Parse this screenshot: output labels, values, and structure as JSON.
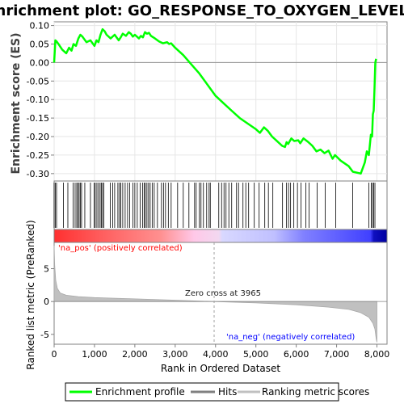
{
  "chart_data": {
    "type": "line",
    "title": "Enrichment plot: GO_RESPONSE_TO_OXYGEN_LEVELS",
    "es_panel": {
      "ylabel": "Enrichment score (ES)",
      "ylim": [
        -0.32,
        0.11
      ],
      "yticks": [
        "0.10",
        "0.05",
        "0.00",
        "-0.05",
        "-0.10",
        "-0.15",
        "-0.20",
        "-0.25",
        "-0.30"
      ],
      "ytick_values": [
        0.1,
        0.05,
        0.0,
        -0.05,
        -0.1,
        -0.15,
        -0.2,
        -0.25,
        -0.3
      ],
      "series": [
        {
          "name": "Enrichment profile",
          "color": "#00ff00",
          "x": [
            0,
            30,
            60,
            120,
            200,
            300,
            370,
            430,
            480,
            540,
            600,
            650,
            700,
            800,
            900,
            1000,
            1050,
            1100,
            1150,
            1200,
            1250,
            1300,
            1400,
            1500,
            1600,
            1650,
            1700,
            1780,
            1850,
            1900,
            1950,
            2000,
            2100,
            2150,
            2200,
            2250,
            2300,
            2350,
            2400,
            2500,
            2600,
            2700,
            2800,
            2850,
            2900,
            3000,
            3200,
            3400,
            3600,
            3800,
            4000,
            4200,
            4400,
            4600,
            4800,
            5000,
            5100,
            5200,
            5300,
            5400,
            5500,
            5650,
            5720,
            5760,
            5800,
            5880,
            5950,
            6050,
            6100,
            6180,
            6300,
            6400,
            6500,
            6600,
            6700,
            6800,
            6900,
            6960,
            7100,
            7300,
            7400,
            7600,
            7700,
            7750,
            7800,
            7850,
            7880,
            7900,
            7920,
            7940,
            7960,
            7980
          ],
          "y": [
            0.0,
            0.06,
            0.057,
            0.048,
            0.035,
            0.025,
            0.04,
            0.032,
            0.05,
            0.045,
            0.065,
            0.075,
            0.07,
            0.055,
            0.06,
            0.045,
            0.06,
            0.055,
            0.075,
            0.09,
            0.085,
            0.075,
            0.065,
            0.075,
            0.06,
            0.068,
            0.078,
            0.072,
            0.082,
            0.078,
            0.07,
            0.075,
            0.065,
            0.072,
            0.068,
            0.082,
            0.078,
            0.08,
            0.072,
            0.065,
            0.057,
            0.052,
            0.055,
            0.05,
            0.052,
            0.04,
            0.02,
            -0.005,
            -0.03,
            -0.06,
            -0.09,
            -0.11,
            -0.13,
            -0.15,
            -0.165,
            -0.18,
            -0.19,
            -0.175,
            -0.185,
            -0.2,
            -0.21,
            -0.225,
            -0.228,
            -0.215,
            -0.22,
            -0.205,
            -0.212,
            -0.21,
            -0.218,
            -0.205,
            -0.215,
            -0.225,
            -0.24,
            -0.235,
            -0.245,
            -0.238,
            -0.26,
            -0.25,
            -0.265,
            -0.28,
            -0.295,
            -0.3,
            -0.27,
            -0.24,
            -0.25,
            -0.195,
            -0.2,
            -0.14,
            -0.13,
            -0.07,
            0.0,
            0.01
          ]
        }
      ]
    },
    "hits": {
      "name": "Hits",
      "x": [
        0,
        30,
        60,
        230,
        340,
        470,
        520,
        560,
        590,
        620,
        650,
        680,
        760,
        900,
        990,
        1020,
        1060,
        1100,
        1140,
        1170,
        1200,
        1230,
        1390,
        1450,
        1500,
        1580,
        1620,
        1650,
        1700,
        1760,
        1820,
        1870,
        1950,
        2000,
        2060,
        2130,
        2190,
        2230,
        2260,
        2300,
        2340,
        2380,
        2430,
        2480,
        2560,
        2660,
        2710,
        2760,
        2830,
        2900,
        3060,
        3200,
        3340,
        3480,
        3520,
        3600,
        3640,
        3700,
        3780,
        3840,
        3870,
        4080,
        4150,
        4210,
        4260,
        4330,
        4400,
        4520,
        4570,
        4680,
        4750,
        4820,
        4960,
        5080,
        5220,
        5310,
        5420,
        5660,
        5760,
        5810,
        5860,
        5940,
        6030,
        6120,
        6240,
        6320,
        6520,
        6720,
        6980,
        7400,
        7800,
        7860,
        7890,
        7920,
        7950
      ],
      "color": "#000000"
    },
    "ranking": {
      "name": "Ranking metric scores",
      "xlabel": "Rank in Ordered Dataset",
      "ylabel": "Ranked list metric (PreRanked)",
      "xlim": [
        0,
        8250
      ],
      "xticks": [
        "0",
        "1,000",
        "2,000",
        "3,000",
        "4,000",
        "5,000",
        "6,000",
        "7,000",
        "8,000"
      ],
      "xtick_values": [
        0,
        1000,
        2000,
        3000,
        4000,
        5000,
        6000,
        7000,
        8000
      ],
      "ylim": [
        -6.5,
        9
      ],
      "yticks": [
        "5",
        "0",
        "-5"
      ],
      "ytick_values": [
        5,
        0,
        -5
      ],
      "x": [
        0,
        15,
        40,
        80,
        150,
        300,
        600,
        1000,
        2000,
        3000,
        3965,
        5000,
        6000,
        6800,
        7300,
        7600,
        7800,
        7900,
        7950,
        7980,
        8000
      ],
      "y": [
        8.5,
        5.5,
        3.2,
        2.0,
        1.3,
        0.95,
        0.75,
        0.6,
        0.4,
        0.2,
        0.0,
        -0.22,
        -0.5,
        -0.85,
        -1.2,
        -1.7,
        -2.4,
        -3.3,
        -4.2,
        -5.6,
        -6.2
      ],
      "color": "#c0c0c0"
    },
    "zero_cross_label": "Zero cross at 3965",
    "zero_cross": 3965,
    "pos_label": "'na_pos' (positively correlated)",
    "neg_label": "'na_neg' (negatively correlated)",
    "pos_color": "#ff0000",
    "neg_color": "#0000ff",
    "legend": {
      "placement": "bottom",
      "items": [
        {
          "label": "Enrichment profile",
          "color": "#00ff00"
        },
        {
          "label": "Hits",
          "color": "#808080"
        },
        {
          "label": "Ranking metric scores",
          "color": "#c0c0c0"
        }
      ]
    }
  }
}
